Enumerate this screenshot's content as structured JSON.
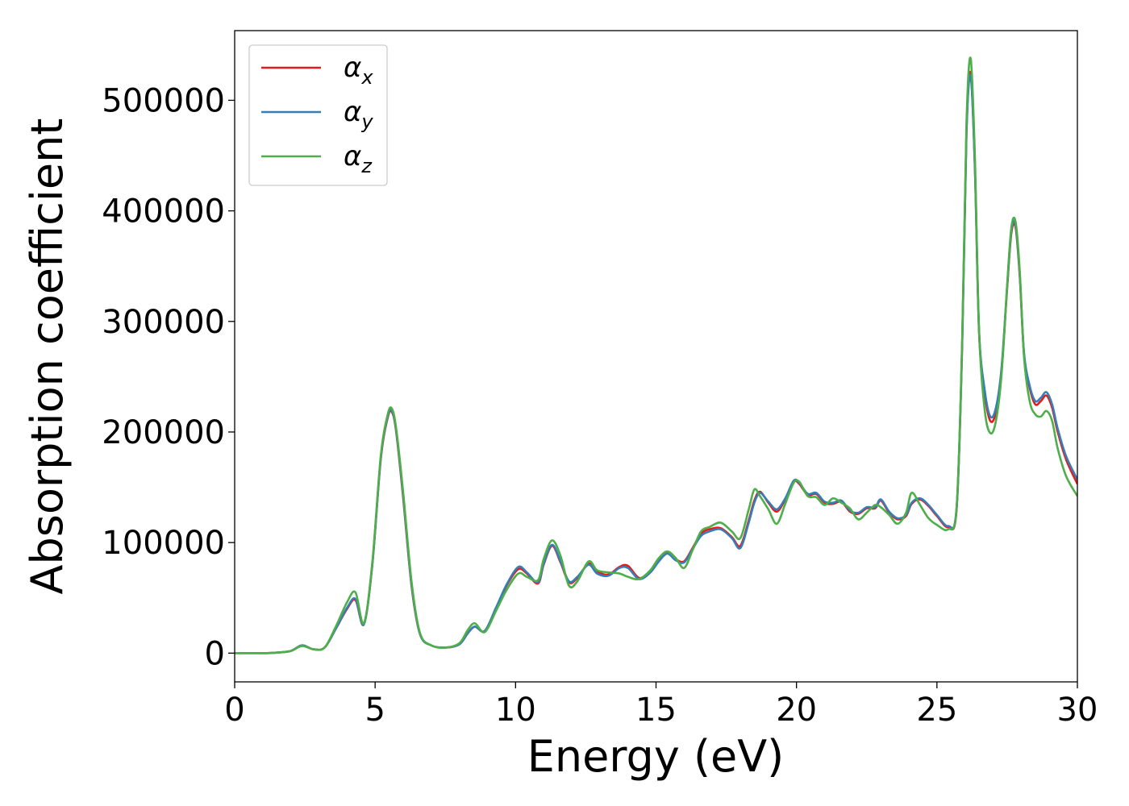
{
  "chart_data": {
    "type": "line",
    "xlabel": "Energy (eV)",
    "ylabel": "Absorption coefficient",
    "xlim": [
      0,
      30
    ],
    "ylim": [
      -26000,
      563000
    ],
    "x_ticks": [
      0,
      5,
      10,
      15,
      20,
      25,
      30
    ],
    "y_ticks": [
      0,
      100000,
      200000,
      300000,
      400000,
      500000
    ],
    "grid": false,
    "legend": {
      "position": "top-left",
      "entries": [
        {
          "base": "α",
          "sub": "x",
          "color": "#e41a1c"
        },
        {
          "base": "α",
          "sub": "y",
          "color": "#377eb8"
        },
        {
          "base": "α",
          "sub": "z",
          "color": "#4daf4a"
        }
      ]
    },
    "x": [
      0,
      1,
      1.5,
      2,
      2.4,
      2.8,
      3.2,
      3.6,
      4.0,
      4.3,
      4.6,
      4.9,
      5.2,
      5.45,
      5.6,
      5.75,
      6.0,
      6.3,
      6.6,
      7.0,
      7.5,
      8.0,
      8.3,
      8.55,
      8.9,
      9.3,
      9.7,
      10.1,
      10.4,
      10.8,
      11.0,
      11.3,
      11.6,
      11.9,
      12.2,
      12.6,
      12.9,
      13.3,
      13.7,
      14.0,
      14.4,
      14.8,
      15.1,
      15.4,
      15.7,
      16.0,
      16.3,
      16.6,
      16.9,
      17.3,
      17.7,
      18.0,
      18.3,
      18.5,
      18.7,
      19.0,
      19.3,
      19.6,
      19.9,
      20.1,
      20.4,
      20.7,
      21.0,
      21.3,
      21.6,
      21.9,
      22.2,
      22.5,
      22.8,
      23.0,
      23.3,
      23.6,
      23.9,
      24.1,
      24.4,
      24.7,
      25.0,
      25.4,
      25.7,
      25.9,
      26.05,
      26.2,
      26.35,
      26.5,
      26.7,
      26.9,
      27.1,
      27.3,
      27.5,
      27.65,
      27.8,
      27.95,
      28.1,
      28.3,
      28.5,
      28.7,
      28.9,
      29.1,
      29.3,
      29.6,
      30.0
    ],
    "series": [
      {
        "name": "α_x",
        "color": "#e41a1c",
        "values": [
          0,
          0,
          500,
          2000,
          7000,
          3500,
          5000,
          22000,
          40000,
          48000,
          26000,
          80000,
          175000,
          213000,
          218000,
          200000,
          140000,
          60000,
          17000,
          7000,
          5000,
          8000,
          18000,
          24000,
          20000,
          40000,
          62000,
          76000,
          72000,
          63000,
          80000,
          97000,
          82000,
          64000,
          68000,
          81000,
          74000,
          71000,
          78000,
          79000,
          68000,
          74000,
          84000,
          91000,
          85000,
          83000,
          95000,
          108000,
          112000,
          113000,
          105000,
          97000,
          120000,
          138000,
          146000,
          136000,
          128000,
          139000,
          155000,
          153000,
          143000,
          144000,
          136000,
          135000,
          137000,
          128000,
          126000,
          131000,
          131000,
          138000,
          127000,
          121000,
          124000,
          135000,
          139000,
          133000,
          124000,
          114000,
          130000,
          280000,
          470000,
          525000,
          440000,
          290000,
          235000,
          210000,
          218000,
          255000,
          330000,
          380000,
          385000,
          340000,
          270000,
          240000,
          225000,
          228000,
          233000,
          222000,
          200000,
          175000,
          153000
        ]
      },
      {
        "name": "α_y",
        "color": "#377eb8",
        "values": [
          0,
          0,
          500,
          2000,
          7000,
          3500,
          5000,
          22000,
          41000,
          49000,
          26000,
          80000,
          176000,
          214000,
          219000,
          201000,
          142000,
          61000,
          17000,
          7000,
          5000,
          8000,
          18000,
          24000,
          20000,
          41000,
          63000,
          78000,
          73000,
          64000,
          81000,
          98000,
          83000,
          65000,
          69000,
          80000,
          72000,
          70000,
          77000,
          77000,
          67000,
          73000,
          83000,
          90000,
          84000,
          82000,
          94000,
          106000,
          110000,
          112000,
          104000,
          95000,
          118000,
          136000,
          145000,
          137000,
          130000,
          140000,
          156000,
          154000,
          144000,
          145000,
          137000,
          136000,
          138000,
          129000,
          127000,
          132000,
          132000,
          139000,
          128000,
          122000,
          125000,
          136000,
          140000,
          134000,
          125000,
          115000,
          131000,
          281000,
          468000,
          522000,
          440000,
          292000,
          238000,
          214000,
          222000,
          258000,
          332000,
          382000,
          387000,
          342000,
          272000,
          242000,
          228000,
          231000,
          236000,
          225000,
          203000,
          178000,
          157000
        ]
      },
      {
        "name": "α_z",
        "color": "#4daf4a",
        "values": [
          0,
          0,
          500,
          2000,
          6500,
          3500,
          5000,
          24000,
          46000,
          55000,
          27000,
          82000,
          178000,
          216000,
          221000,
          203000,
          145000,
          64000,
          18000,
          7000,
          5000,
          9000,
          21000,
          27000,
          19000,
          38000,
          58000,
          72000,
          69000,
          66000,
          85000,
          102000,
          88000,
          61000,
          65000,
          83000,
          75000,
          73000,
          72000,
          69000,
          67000,
          75000,
          86000,
          92000,
          86000,
          77000,
          93000,
          110000,
          114000,
          118000,
          110000,
          104000,
          130000,
          148000,
          142000,
          130000,
          117000,
          135000,
          154000,
          155000,
          142000,
          141000,
          134000,
          140000,
          136000,
          131000,
          121000,
          127000,
          134000,
          132000,
          125000,
          117000,
          127000,
          145000,
          134000,
          122000,
          116000,
          112000,
          132000,
          285000,
          478000,
          538000,
          450000,
          292000,
          220000,
          199000,
          210000,
          252000,
          333000,
          385000,
          390000,
          345000,
          268000,
          228000,
          216000,
          214000,
          219000,
          210000,
          185000,
          160000,
          142000
        ]
      }
    ]
  }
}
